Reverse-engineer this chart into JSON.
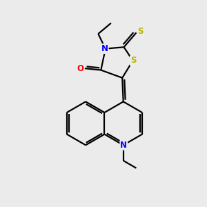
{
  "background_color": "#ebebeb",
  "bond_color": "#000000",
  "N_color": "#0000ff",
  "O_color": "#ff0000",
  "S_color": "#b8b800",
  "figsize": [
    3.0,
    3.0
  ],
  "dpi": 100,
  "lw": 1.6,
  "xlim": [
    0,
    10
  ],
  "ylim": [
    0,
    10
  ]
}
